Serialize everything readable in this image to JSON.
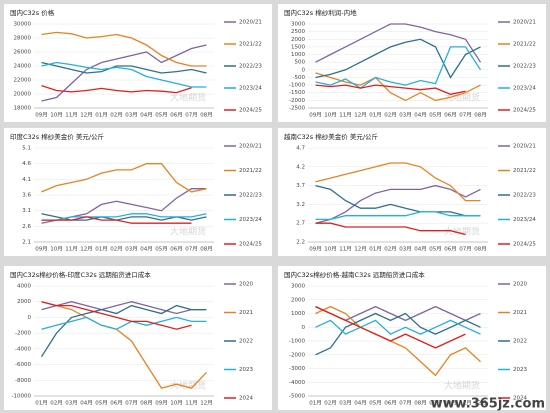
{
  "site_watermark": "www.365jz.com",
  "chart_data": [
    {
      "type": "line",
      "title": "国内C32s 价格",
      "watermark": "大地期货",
      "categories": [
        "09月",
        "10月",
        "11月",
        "12月",
        "01月",
        "02月",
        "03月",
        "04月",
        "05月",
        "06月",
        "07月",
        "08月"
      ],
      "ylim": [
        18000,
        30000
      ],
      "yticks": [
        18000,
        20000,
        22000,
        24000,
        26000,
        28000,
        30000
      ],
      "series": [
        {
          "name": "2020/21",
          "color": "#8064a2",
          "values": [
            19000,
            19500,
            21500,
            23500,
            24500,
            25000,
            25500,
            26000,
            24500,
            25500,
            26500,
            27000
          ]
        },
        {
          "name": "2021/22",
          "color": "#e8821e",
          "values": [
            28500,
            28800,
            28600,
            28000,
            28200,
            28500,
            28000,
            27000,
            25500,
            24500,
            24000,
            24000
          ]
        },
        {
          "name": "2022/23",
          "color": "#2e6f8e",
          "values": [
            24500,
            24000,
            23500,
            23000,
            23200,
            24000,
            24000,
            23500,
            23000,
            23200,
            23500,
            23000
          ]
        },
        {
          "name": "2023/24",
          "color": "#23b0e0",
          "values": [
            24000,
            24500,
            24200,
            23800,
            23500,
            23800,
            23500,
            22500,
            22000,
            21500,
            21000,
            21000
          ]
        },
        {
          "name": "2024/25",
          "color": "#e0201c",
          "values": [
            21200,
            20500,
            20300,
            20500,
            20800,
            20500,
            20300,
            20500,
            20400,
            20200,
            20900,
            null
          ]
        }
      ]
    },
    {
      "type": "line",
      "title": "国内C32s 棉纱利润-内地",
      "watermark": "大地期货",
      "categories": [
        "09月",
        "10月",
        "11月",
        "12月",
        "01月",
        "02月",
        "03月",
        "04月",
        "05月",
        "06月",
        "07月",
        "08月"
      ],
      "ylim": [
        -2500,
        3000
      ],
      "yticks": [
        -2500,
        -2000,
        -1500,
        -1000,
        -500,
        0,
        500,
        1000,
        1500,
        2000,
        2500,
        3000
      ],
      "series": [
        {
          "name": "2020/21",
          "color": "#8064a2",
          "values": [
            500,
            1000,
            1500,
            2000,
            2500,
            3000,
            3000,
            2800,
            2500,
            2300,
            2000,
            500
          ]
        },
        {
          "name": "2021/22",
          "color": "#e8821e",
          "values": [
            -200,
            -500,
            -800,
            -1000,
            -500,
            -1500,
            -2000,
            -1500,
            -2000,
            -1800,
            -1500,
            -1000
          ]
        },
        {
          "name": "2022/23",
          "color": "#2e6f8e",
          "values": [
            -500,
            -300,
            0,
            500,
            1000,
            1500,
            1800,
            2000,
            1500,
            -500,
            1000,
            1500
          ]
        },
        {
          "name": "2023/24",
          "color": "#23b0e0",
          "values": [
            -800,
            -1000,
            -600,
            -1200,
            -500,
            -800,
            -1000,
            -700,
            -900,
            1500,
            1500,
            0
          ]
        },
        {
          "name": "2024/25",
          "color": "#e0201c",
          "values": [
            -1000,
            -1100,
            -1000,
            -1200,
            -1000,
            -1100,
            -1200,
            -1300,
            -1200,
            -1600,
            -1400,
            null
          ]
        }
      ]
    },
    {
      "type": "line",
      "title": "印度C32s 棉纱美金价  美元/公斤",
      "watermark": "大地期货",
      "categories": [
        "09月",
        "10月",
        "11月",
        "12月",
        "01月",
        "02月",
        "03月",
        "04月",
        "05月",
        "06月",
        "07月",
        "08月"
      ],
      "ylim": [
        2.1,
        5.1
      ],
      "yticks": [
        2.1,
        2.6,
        3.1,
        3.6,
        4.1,
        4.6,
        5.1
      ],
      "series": [
        {
          "name": "2020/21",
          "color": "#8064a2",
          "values": [
            2.7,
            2.8,
            2.9,
            3.0,
            3.3,
            3.4,
            3.3,
            3.2,
            3.1,
            3.5,
            3.8,
            3.8
          ]
        },
        {
          "name": "2021/22",
          "color": "#e8821e",
          "values": [
            3.7,
            3.9,
            4.0,
            4.1,
            4.3,
            4.4,
            4.4,
            4.6,
            4.6,
            4.0,
            3.7,
            3.8
          ]
        },
        {
          "name": "2022/23",
          "color": "#2e6f8e",
          "values": [
            3.0,
            2.9,
            2.8,
            2.8,
            2.9,
            2.8,
            2.9,
            2.9,
            2.8,
            2.9,
            2.8,
            2.9
          ]
        },
        {
          "name": "2023/24",
          "color": "#23b0e0",
          "values": [
            2.8,
            2.8,
            2.9,
            2.9,
            2.9,
            2.9,
            3.0,
            3.0,
            2.9,
            2.9,
            2.9,
            3.0
          ]
        },
        {
          "name": "2024/25",
          "color": "#e0201c",
          "values": [
            2.8,
            2.8,
            2.8,
            2.9,
            2.8,
            2.8,
            2.7,
            2.7,
            2.7,
            2.7,
            2.7,
            null
          ]
        }
      ]
    },
    {
      "type": "line",
      "title": "越南C32s 棉纱美金价  美元/公斤",
      "watermark": "大地期货",
      "categories": [
        "09月",
        "10月",
        "11月",
        "12月",
        "01月",
        "02月",
        "03月",
        "04月",
        "05月",
        "06月",
        "07月",
        "08月"
      ],
      "ylim": [
        2.2,
        4.7
      ],
      "yticks": [
        2.2,
        2.7,
        3.2,
        3.7,
        4.2,
        4.7
      ],
      "series": [
        {
          "name": "2020/21",
          "color": "#8064a2",
          "values": [
            2.7,
            2.8,
            3.0,
            3.3,
            3.5,
            3.6,
            3.6,
            3.6,
            3.7,
            3.6,
            3.4,
            3.6
          ]
        },
        {
          "name": "2021/22",
          "color": "#e8821e",
          "values": [
            3.8,
            3.9,
            4.0,
            4.1,
            4.2,
            4.3,
            4.3,
            4.2,
            3.9,
            3.7,
            3.3,
            3.3
          ]
        },
        {
          "name": "2022/23",
          "color": "#2e6f8e",
          "values": [
            3.7,
            3.6,
            3.3,
            3.1,
            3.1,
            3.2,
            3.1,
            3.0,
            3.0,
            3.0,
            2.9,
            2.9
          ]
        },
        {
          "name": "2023/24",
          "color": "#23b0e0",
          "values": [
            2.8,
            2.8,
            2.9,
            2.9,
            2.9,
            2.9,
            2.9,
            3.0,
            3.0,
            2.9,
            2.9,
            2.9
          ]
        },
        {
          "name": "2024/25",
          "color": "#e0201c",
          "values": [
            2.7,
            2.7,
            2.6,
            2.6,
            2.6,
            2.6,
            2.6,
            2.5,
            2.5,
            2.5,
            2.4,
            null
          ]
        }
      ]
    },
    {
      "type": "line",
      "title": "国内C32s棉纱价格-印度C32s 远期船货进口成本",
      "watermark": "大地期货",
      "categories": [
        "01月",
        "02月",
        "03月",
        "04月",
        "05月",
        "06月",
        "07月",
        "08月",
        "09月",
        "10月",
        "11月",
        "12月"
      ],
      "ylim": [
        -10000,
        4000
      ],
      "yticks": [
        -10000,
        -8000,
        -6000,
        -4000,
        -2000,
        0,
        2000,
        4000
      ],
      "series": [
        {
          "name": "2020",
          "color": "#8064a2",
          "values": [
            1000,
            1500,
            2000,
            1500,
            1000,
            1500,
            2000,
            1500,
            1000,
            500,
            1000,
            1000
          ]
        },
        {
          "name": "2021",
          "color": "#e8821e",
          "values": [
            2000,
            1500,
            1000,
            0,
            -1000,
            -1500,
            -3000,
            -6000,
            -9000,
            -8500,
            -9000,
            -7000
          ]
        },
        {
          "name": "2022",
          "color": "#2e6f8e",
          "values": [
            -5000,
            -2000,
            0,
            500,
            1000,
            500,
            1500,
            1000,
            500,
            1500,
            1000,
            1000
          ]
        },
        {
          "name": "2023",
          "color": "#23b0e0",
          "values": [
            -1500,
            -1000,
            -500,
            0,
            -1000,
            -1500,
            -500,
            -1000,
            -500,
            0,
            -500,
            -500
          ]
        },
        {
          "name": "2024",
          "color": "#e0201c",
          "values": [
            2000,
            1500,
            1500,
            1000,
            500,
            0,
            -500,
            -500,
            -1000,
            -1500,
            -1000,
            null
          ]
        }
      ]
    },
    {
      "type": "line",
      "title": "国内C32s棉纱价格-越南C32s 远期船货进口成本",
      "watermark": "大地期货",
      "categories": [
        "01月",
        "02月",
        "03月",
        "04月",
        "05月",
        "06月",
        "07月",
        "08月",
        "09月",
        "10月",
        "11月",
        "12月"
      ],
      "ylim": [
        -5000,
        3000
      ],
      "yticks": [
        -5000,
        -4000,
        -3000,
        -2000,
        -1000,
        0,
        1000,
        2000,
        3000
      ],
      "series": [
        {
          "name": "2020",
          "color": "#8064a2",
          "values": [
            1500,
            1000,
            500,
            1000,
            1500,
            1000,
            500,
            1000,
            1500,
            1000,
            500,
            1000
          ]
        },
        {
          "name": "2021",
          "color": "#e8821e",
          "values": [
            1000,
            1500,
            1000,
            0,
            -500,
            -1000,
            -1500,
            -2500,
            -3500,
            -2000,
            -1500,
            -2500
          ]
        },
        {
          "name": "2022",
          "color": "#2e6f8e",
          "values": [
            -2000,
            -1500,
            0,
            500,
            1000,
            500,
            1000,
            0,
            -500,
            0,
            500,
            0
          ]
        },
        {
          "name": "2023",
          "color": "#23b0e0",
          "values": [
            0,
            500,
            -500,
            0,
            500,
            -500,
            0,
            -500,
            0,
            500,
            0,
            -500
          ]
        },
        {
          "name": "2024",
          "color": "#e0201c",
          "values": [
            1500,
            1000,
            500,
            0,
            -500,
            -1000,
            -500,
            -1000,
            -1500,
            -1000,
            -500,
            null
          ]
        }
      ]
    }
  ]
}
